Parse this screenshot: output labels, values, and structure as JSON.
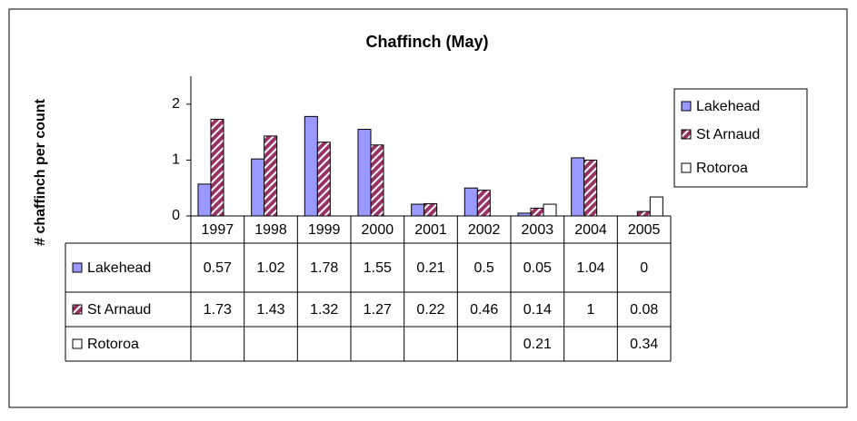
{
  "chart_data": {
    "type": "bar",
    "title": "Chaffinch (May)",
    "y_label": "# chaffinch per count",
    "categories": [
      "1997",
      "1998",
      "1999",
      "2000",
      "2001",
      "2002",
      "2003",
      "2004",
      "2005"
    ],
    "series": [
      {
        "name": "Lakehead",
        "color": "#9999ff",
        "values": [
          0.57,
          1.02,
          1.78,
          1.55,
          0.21,
          0.5,
          0.05,
          1.04,
          0
        ]
      },
      {
        "name": "St Arnaud",
        "color": "#993366",
        "values": [
          1.73,
          1.43,
          1.32,
          1.27,
          0.22,
          0.46,
          0.14,
          1,
          0.08
        ]
      },
      {
        "name": "Rotoroa",
        "color": "#ffffff",
        "values": [
          null,
          null,
          null,
          null,
          null,
          null,
          0.21,
          null,
          0.34
        ]
      }
    ],
    "ylim": [
      0,
      2.5
    ],
    "yticks": [
      0,
      1,
      2
    ],
    "legend": "right",
    "data_table": true
  }
}
